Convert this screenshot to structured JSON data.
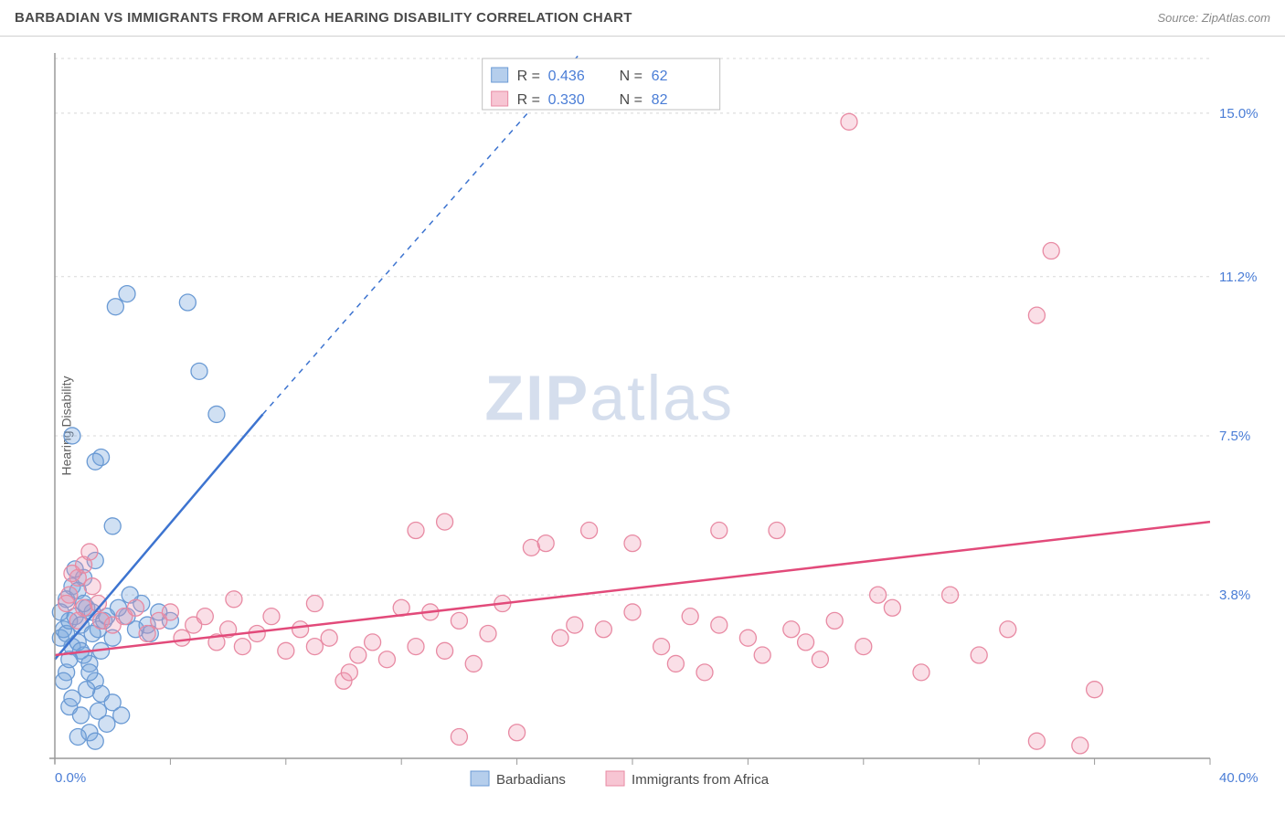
{
  "title": "BARBADIAN VS IMMIGRANTS FROM AFRICA HEARING DISABILITY CORRELATION CHART",
  "source": "Source: ZipAtlas.com",
  "ylabel": "Hearing Disability",
  "watermark": {
    "a": "ZIP",
    "b": "atlas"
  },
  "chart": {
    "type": "scatter",
    "background_color": "#ffffff",
    "grid_color": "#d8d8d8",
    "axis_color": "#9a9a9a",
    "xlim": [
      0,
      40.0
    ],
    "ylim": [
      0,
      16.4
    ],
    "x_origin_label": "0.0%",
    "x_max_label": "40.0%",
    "y_grid": [
      {
        "v": 3.8,
        "label": "3.8%"
      },
      {
        "v": 7.5,
        "label": "7.5%"
      },
      {
        "v": 11.2,
        "label": "11.2%"
      },
      {
        "v": 15.0,
        "label": "15.0%"
      }
    ],
    "x_ticks": [
      0,
      4.0,
      8.0,
      12.0,
      16.0,
      20.0,
      24.0,
      28.0,
      32.0,
      36.0,
      40.0
    ],
    "marker_radius": 9,
    "series": [
      {
        "key": "blue",
        "label": "Barbadians",
        "fill_color": "rgba(120,165,220,0.35)",
        "stroke_color": "#6a9ad4",
        "line_color": "#3d74d0",
        "r_label": "R = ",
        "r_value": "0.436",
        "n_label": "N = ",
        "n_value": "62",
        "trend": {
          "x1": 0.0,
          "y1": 2.3,
          "x2": 7.2,
          "y2": 8.0,
          "x2_dash": 18.2,
          "y2_dash": 16.4
        },
        "points": [
          [
            0.2,
            2.8
          ],
          [
            0.3,
            3.0
          ],
          [
            0.4,
            2.9
          ],
          [
            0.5,
            3.2
          ],
          [
            0.6,
            2.6
          ],
          [
            0.7,
            3.3
          ],
          [
            0.8,
            2.7
          ],
          [
            0.9,
            3.1
          ],
          [
            1.0,
            2.4
          ],
          [
            1.1,
            3.5
          ],
          [
            1.2,
            2.2
          ],
          [
            1.3,
            3.4
          ],
          [
            1.4,
            1.8
          ],
          [
            1.5,
            3.0
          ],
          [
            1.6,
            1.5
          ],
          [
            1.7,
            3.2
          ],
          [
            0.5,
            1.2
          ],
          [
            0.9,
            1.0
          ],
          [
            1.2,
            0.6
          ],
          [
            1.5,
            1.1
          ],
          [
            1.8,
            0.8
          ],
          [
            0.8,
            0.5
          ],
          [
            1.1,
            1.6
          ],
          [
            2.0,
            1.3
          ],
          [
            2.3,
            1.0
          ],
          [
            1.4,
            0.4
          ],
          [
            2.5,
            3.3
          ],
          [
            2.8,
            3.0
          ],
          [
            3.0,
            3.6
          ],
          [
            3.3,
            2.9
          ],
          [
            3.6,
            3.4
          ],
          [
            4.0,
            3.2
          ],
          [
            2.0,
            5.4
          ],
          [
            2.6,
            3.8
          ],
          [
            3.2,
            3.1
          ],
          [
            1.0,
            4.2
          ],
          [
            1.4,
            4.6
          ],
          [
            0.6,
            4.0
          ],
          [
            0.4,
            3.7
          ],
          [
            0.2,
            3.4
          ],
          [
            1.6,
            7.0
          ],
          [
            1.4,
            6.9
          ],
          [
            0.6,
            7.5
          ],
          [
            2.1,
            10.5
          ],
          [
            2.5,
            10.8
          ],
          [
            5.0,
            9.0
          ],
          [
            4.6,
            10.6
          ],
          [
            5.6,
            8.0
          ],
          [
            0.8,
            3.9
          ],
          [
            1.2,
            2.0
          ],
          [
            1.6,
            2.5
          ],
          [
            2.0,
            2.8
          ],
          [
            0.4,
            2.0
          ],
          [
            0.9,
            2.5
          ],
          [
            1.3,
            2.9
          ],
          [
            0.5,
            2.3
          ],
          [
            0.7,
            4.4
          ],
          [
            0.3,
            1.8
          ],
          [
            0.6,
            1.4
          ],
          [
            1.0,
            3.6
          ],
          [
            1.8,
            3.3
          ],
          [
            2.2,
            3.5
          ]
        ]
      },
      {
        "key": "pink",
        "label": "Immigrants from Africa",
        "fill_color": "rgba(240,150,175,0.30)",
        "stroke_color": "#e88aa3",
        "line_color": "#e24a7a",
        "r_label": "R = ",
        "r_value": "0.330",
        "n_label": "N = ",
        "n_value": "82",
        "trend": {
          "x1": 0.0,
          "y1": 2.4,
          "x2": 40.0,
          "y2": 5.5
        },
        "points": [
          [
            0.5,
            3.8
          ],
          [
            0.8,
            4.2
          ],
          [
            1.0,
            3.5
          ],
          [
            1.3,
            4.0
          ],
          [
            1.6,
            3.2
          ],
          [
            2.0,
            3.1
          ],
          [
            2.4,
            3.3
          ],
          [
            2.8,
            3.5
          ],
          [
            3.2,
            2.9
          ],
          [
            3.6,
            3.2
          ],
          [
            4.0,
            3.4
          ],
          [
            4.4,
            2.8
          ],
          [
            4.8,
            3.1
          ],
          [
            5.2,
            3.3
          ],
          [
            5.6,
            2.7
          ],
          [
            6.0,
            3.0
          ],
          [
            6.5,
            2.6
          ],
          [
            7.0,
            2.9
          ],
          [
            7.5,
            3.3
          ],
          [
            8.0,
            2.5
          ],
          [
            8.5,
            3.0
          ],
          [
            9.0,
            2.6
          ],
          [
            9.5,
            2.8
          ],
          [
            10.0,
            1.8
          ],
          [
            10.5,
            2.4
          ],
          [
            11.0,
            2.7
          ],
          [
            11.5,
            2.3
          ],
          [
            12.0,
            3.5
          ],
          [
            12.5,
            2.6
          ],
          [
            13.0,
            3.4
          ],
          [
            13.5,
            2.5
          ],
          [
            14.0,
            3.2
          ],
          [
            14.5,
            2.2
          ],
          [
            15.0,
            2.9
          ],
          [
            15.5,
            3.6
          ],
          [
            16.0,
            0.6
          ],
          [
            16.5,
            4.9
          ],
          [
            17.0,
            5.0
          ],
          [
            17.5,
            2.8
          ],
          [
            18.0,
            3.1
          ],
          [
            18.5,
            5.3
          ],
          [
            19.0,
            3.0
          ],
          [
            20.0,
            3.4
          ],
          [
            20.0,
            5.0
          ],
          [
            21.0,
            2.6
          ],
          [
            21.5,
            2.2
          ],
          [
            22.0,
            3.3
          ],
          [
            22.5,
            2.0
          ],
          [
            23.0,
            5.3
          ],
          [
            23.0,
            3.1
          ],
          [
            24.0,
            2.8
          ],
          [
            24.5,
            2.4
          ],
          [
            25.0,
            5.3
          ],
          [
            25.5,
            3.0
          ],
          [
            26.0,
            2.7
          ],
          [
            26.5,
            2.3
          ],
          [
            27.0,
            3.2
          ],
          [
            28.0,
            2.6
          ],
          [
            28.5,
            3.8
          ],
          [
            29.0,
            3.5
          ],
          [
            30.0,
            2.0
          ],
          [
            31.0,
            3.8
          ],
          [
            32.0,
            2.4
          ],
          [
            33.0,
            3.0
          ],
          [
            34.0,
            0.4
          ],
          [
            27.5,
            14.8
          ],
          [
            34.5,
            11.8
          ],
          [
            34.0,
            10.3
          ],
          [
            36.0,
            1.6
          ],
          [
            35.5,
            0.3
          ],
          [
            12.5,
            5.3
          ],
          [
            1.0,
            4.5
          ],
          [
            1.2,
            4.8
          ],
          [
            0.6,
            4.3
          ],
          [
            0.4,
            3.6
          ],
          [
            0.8,
            3.2
          ],
          [
            1.5,
            3.6
          ],
          [
            6.2,
            3.7
          ],
          [
            13.5,
            5.5
          ],
          [
            10.2,
            2.0
          ],
          [
            14.0,
            0.5
          ],
          [
            9.0,
            3.6
          ]
        ]
      }
    ],
    "legend": {
      "items": [
        {
          "series": "blue",
          "label": "Barbadians"
        },
        {
          "series": "pink",
          "label": "Immigrants from Africa"
        }
      ]
    }
  }
}
